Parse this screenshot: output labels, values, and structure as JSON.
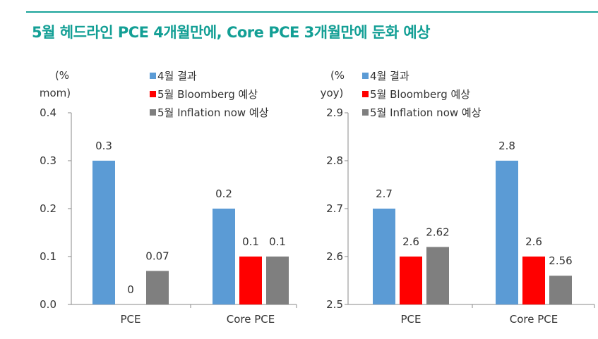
{
  "page": {
    "title": "5월 헤드라인 PCE 4개월만에, Core PCE 3개월만에 둔화 예상",
    "accent_color": "#1aa39a",
    "title_color": "#139f95"
  },
  "chart_data": [
    {
      "type": "bar",
      "unit_label_line1": "(%",
      "unit_label_line2": "mom)",
      "categories": [
        "PCE",
        "Core PCE"
      ],
      "ylim": [
        0.0,
        0.4
      ],
      "yticks": [
        "0.0",
        "0.1",
        "0.2",
        "0.3",
        "0.4"
      ],
      "grid": false,
      "legend_position": "top",
      "series": [
        {
          "name": "4월 결과",
          "color": "#5b9bd5",
          "values": [
            0.3,
            0.2
          ],
          "labels": [
            "0.3",
            "0.2"
          ]
        },
        {
          "name": "5월 Bloomberg 예상",
          "color": "#ff0000",
          "values": [
            0,
            0.1
          ],
          "labels": [
            "0",
            "0.1"
          ]
        },
        {
          "name": "5월 Inflation now 예상",
          "color": "#7f7f7f",
          "values": [
            0.07,
            0.1
          ],
          "labels": [
            "0.07",
            "0.1"
          ]
        }
      ]
    },
    {
      "type": "bar",
      "unit_label_line1": "(%",
      "unit_label_line2": "yoy)",
      "categories": [
        "PCE",
        "Core PCE"
      ],
      "ylim": [
        2.5,
        2.9
      ],
      "yticks": [
        "2.5",
        "2.6",
        "2.7",
        "2.8",
        "2.9"
      ],
      "grid": false,
      "legend_position": "top",
      "series": [
        {
          "name": "4월 결과",
          "color": "#5b9bd5",
          "values": [
            2.7,
            2.8
          ],
          "labels": [
            "2.7",
            "2.8"
          ]
        },
        {
          "name": "5월 Bloomberg 예상",
          "color": "#ff0000",
          "values": [
            2.6,
            2.6
          ],
          "labels": [
            "2.6",
            "2.6"
          ]
        },
        {
          "name": "5월 Inflation now 예상",
          "color": "#7f7f7f",
          "values": [
            2.62,
            2.56
          ],
          "labels": [
            "2.62",
            "2.56"
          ]
        }
      ]
    }
  ]
}
